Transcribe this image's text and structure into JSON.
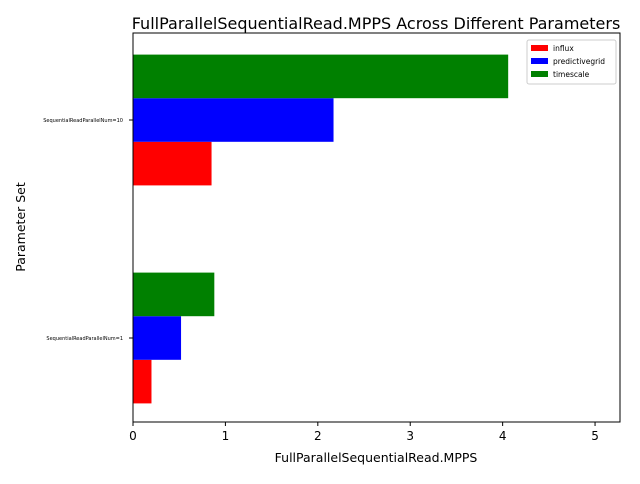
{
  "chart_data": {
    "type": "bar",
    "orientation": "horizontal",
    "title": "FullParallelSequentialRead.MPPS Across Different Parameters",
    "xlabel": "FullParallelSequentialRead.MPPS",
    "ylabel": "Parameter Set",
    "categories": [
      "SequentialReadParallelNum=1",
      "SequentialReadParallelNum=10"
    ],
    "series": [
      {
        "name": "influx",
        "color": "#ff0000",
        "values": [
          0.2,
          0.85
        ]
      },
      {
        "name": "predictivegrid",
        "color": "#0000ff",
        "values": [
          0.52,
          2.17
        ]
      },
      {
        "name": "timescale",
        "color": "#008000",
        "values": [
          0.88,
          4.06
        ]
      }
    ],
    "xlim": [
      0,
      5.27
    ],
    "xticks": [
      0,
      1,
      2,
      3,
      4,
      5
    ],
    "grid": false,
    "legend": "top-right"
  }
}
